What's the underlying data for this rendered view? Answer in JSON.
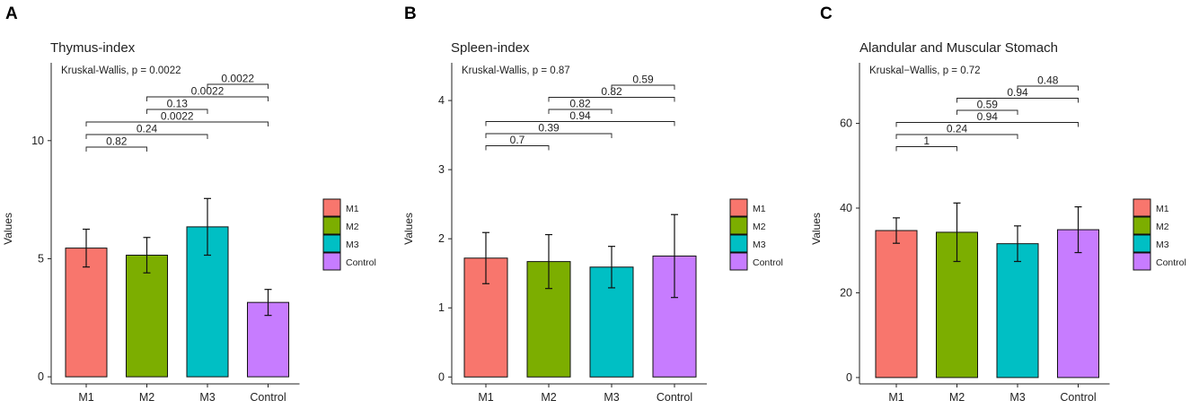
{
  "chart_data": [
    {
      "type": "bar",
      "panel_label": "A",
      "title": "Thymus-index",
      "ylabel": "Values",
      "xlabel": "",
      "test_label": "Kruskal-Wallis, p = 0.0022",
      "categories": [
        "M1",
        "M2",
        "M3",
        "Control"
      ],
      "values": [
        5.45,
        5.15,
        6.35,
        3.15
      ],
      "errors": [
        0.8,
        0.75,
        1.2,
        0.55
      ],
      "ylim": [
        -0.3,
        13.6
      ],
      "yticks": [
        0,
        5,
        10
      ],
      "ytick_labels": [
        "0",
        "5",
        "10"
      ],
      "comparisons": [
        {
          "pair": [
            "M1",
            "M2"
          ],
          "p": "0.82"
        },
        {
          "pair": [
            "M1",
            "M3"
          ],
          "p": "0.24"
        },
        {
          "pair": [
            "M1",
            "Control"
          ],
          "p": "0.0022"
        },
        {
          "pair": [
            "M2",
            "M3"
          ],
          "p": "0.13"
        },
        {
          "pair": [
            "M2",
            "Control"
          ],
          "p": "0.0022"
        },
        {
          "pair": [
            "M3",
            "Control"
          ],
          "p": "0.0022"
        }
      ]
    },
    {
      "type": "bar",
      "panel_label": "B",
      "title": "Spleen-index",
      "ylabel": "Values",
      "xlabel": "",
      "test_label": "Kruskal-Wallis, p = 0.87",
      "categories": [
        "M1",
        "M2",
        "M3",
        "Control"
      ],
      "values": [
        1.72,
        1.67,
        1.59,
        1.75
      ],
      "errors": [
        0.37,
        0.39,
        0.3,
        0.6
      ],
      "ylim": [
        -0.1,
        4.65
      ],
      "yticks": [
        0,
        1,
        2,
        3,
        4
      ],
      "ytick_labels": [
        "0",
        "1",
        "2",
        "3",
        "4"
      ],
      "comparisons": [
        {
          "pair": [
            "M1",
            "M2"
          ],
          "p": "0.7"
        },
        {
          "pair": [
            "M1",
            "M3"
          ],
          "p": "0.39"
        },
        {
          "pair": [
            "M1",
            "Control"
          ],
          "p": "0.94"
        },
        {
          "pair": [
            "M2",
            "M3"
          ],
          "p": "0.82"
        },
        {
          "pair": [
            "M2",
            "Control"
          ],
          "p": "0.82"
        },
        {
          "pair": [
            "M3",
            "Control"
          ],
          "p": "0.59"
        }
      ]
    },
    {
      "type": "bar",
      "panel_label": "C",
      "title": "Alandular and Muscular Stomach",
      "ylabel": "Values",
      "xlabel": "",
      "test_label": "Kruskal−Wallis, p = 0.72",
      "categories": [
        "M1",
        "M2",
        "M3",
        "Control"
      ],
      "values": [
        34.7,
        34.3,
        31.6,
        34.9
      ],
      "errors": [
        3.0,
        6.9,
        4.2,
        5.4
      ],
      "ylim": [
        -1.5,
        76.0
      ],
      "yticks": [
        0,
        20,
        40,
        60
      ],
      "ytick_labels": [
        "0",
        "20",
        "40",
        "60"
      ],
      "comparisons": [
        {
          "pair": [
            "M1",
            "M2"
          ],
          "p": "1"
        },
        {
          "pair": [
            "M1",
            "M3"
          ],
          "p": "0.24"
        },
        {
          "pair": [
            "M1",
            "Control"
          ],
          "p": "0.94"
        },
        {
          "pair": [
            "M2",
            "M3"
          ],
          "p": "0.59"
        },
        {
          "pair": [
            "M2",
            "Control"
          ],
          "p": "0.94"
        },
        {
          "pair": [
            "M3",
            "Control"
          ],
          "p": "0.48"
        }
      ]
    }
  ],
  "legend": {
    "placement": "right",
    "items": [
      {
        "label": "M1",
        "color": "#F8766D"
      },
      {
        "label": "M2",
        "color": "#7CAE00"
      },
      {
        "label": "M3",
        "color": "#00BFC4"
      },
      {
        "label": "Control",
        "color": "#C77CFF"
      }
    ]
  }
}
